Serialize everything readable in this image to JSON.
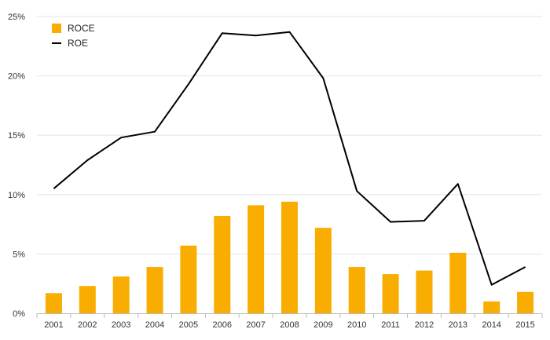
{
  "chart_data": {
    "type": "bar",
    "categories": [
      "2001",
      "2002",
      "2003",
      "2004",
      "2005",
      "2006",
      "2007",
      "2008",
      "2009",
      "2010",
      "2011",
      "2012",
      "2013",
      "2014",
      "2015"
    ],
    "series": [
      {
        "name": "ROCE",
        "type": "bar",
        "color": "#f9ad00",
        "values": [
          1.7,
          2.3,
          3.1,
          3.9,
          5.7,
          8.2,
          9.1,
          9.4,
          7.2,
          3.9,
          3.3,
          3.6,
          5.1,
          1.0,
          1.8
        ]
      },
      {
        "name": "ROE",
        "type": "line",
        "color": "#000000",
        "values": [
          10.5,
          12.9,
          14.8,
          15.3,
          19.3,
          23.6,
          23.4,
          23.7,
          19.8,
          10.3,
          7.7,
          7.8,
          10.9,
          2.4,
          3.9
        ]
      }
    ],
    "y_tick_labels": [
      "0%",
      "5%",
      "10%",
      "15%",
      "20%",
      "25%"
    ],
    "y_ticks": [
      0,
      5,
      10,
      15,
      20,
      25
    ],
    "ylim": [
      0,
      25
    ],
    "y_unit": "%",
    "grid": true,
    "legend_position": "top-left",
    "title": "",
    "xlabel": "",
    "ylabel": ""
  },
  "legend": {
    "roce_label": "ROCE",
    "roe_label": "ROE"
  }
}
